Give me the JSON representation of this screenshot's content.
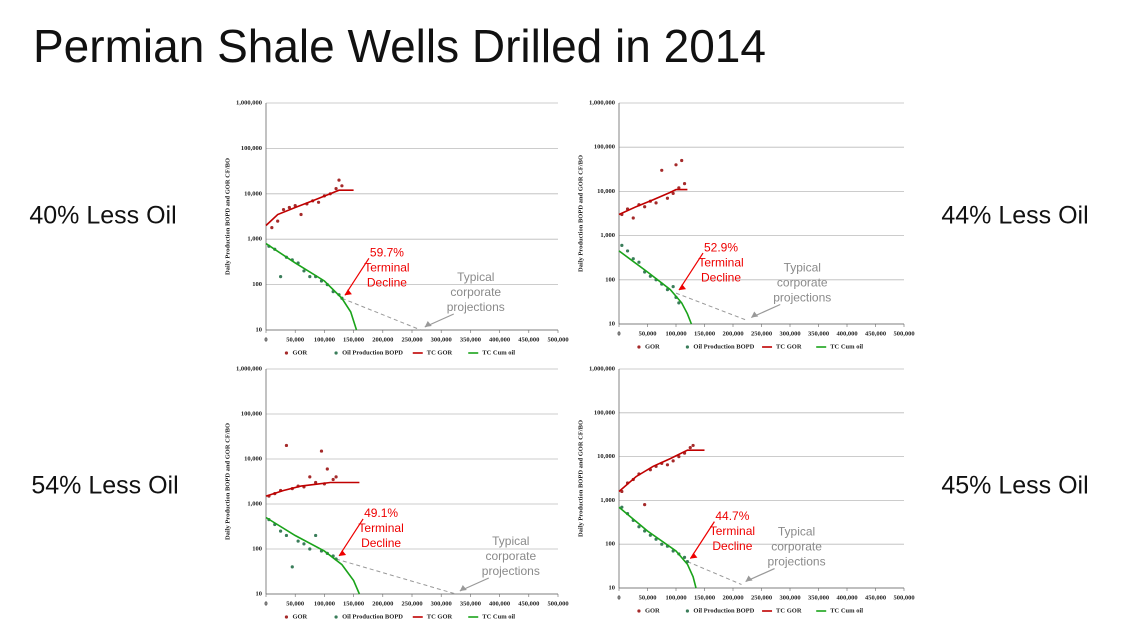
{
  "title": "Permian Shale Wells Drilled in 2014",
  "chart_data": [
    {
      "type": "scatter",
      "caption": "40% Less Oil",
      "y_label": "Daily Production BOPD and GOR CF/BO",
      "log_y": true,
      "grid": true,
      "xlim": [
        0,
        500000
      ],
      "ylim": [
        10,
        1000000
      ],
      "xticks": [
        0,
        {
          "value": 50000,
          "label": "50,000"
        },
        {
          "value": 100000,
          "label": "100,000"
        },
        {
          "value": 150000,
          "label": "150,000"
        },
        {
          "value": 200000,
          "label": "200,000"
        },
        {
          "value": 250000,
          "label": "250,000"
        },
        {
          "value": 300000,
          "label": "300,000"
        },
        {
          "value": 350000,
          "label": "350,000"
        },
        {
          "value": 400000,
          "label": "400,000"
        },
        {
          "value": 450000,
          "label": "450,000"
        },
        {
          "value": 500000,
          "label": "500,000"
        }
      ],
      "yticks": [
        10,
        100,
        {
          "value": 1000,
          "label": "1,000"
        },
        {
          "value": 10000,
          "label": "10,000"
        },
        {
          "value": 100000,
          "label": "100,000"
        },
        {
          "value": 1000000,
          "label": "1,000,000"
        }
      ],
      "series": [
        {
          "name": "GOR",
          "kind": "points",
          "color": "#a52a2a",
          "x": [
            10000,
            20000,
            30000,
            40000,
            50000,
            60000,
            70000,
            80000,
            90000,
            100000,
            110000,
            120000,
            125000,
            130000
          ],
          "values": [
            1800,
            2500,
            4500,
            5000,
            5500,
            3500,
            6000,
            7000,
            6500,
            9000,
            10000,
            13000,
            20000,
            15000
          ]
        },
        {
          "name": "Oil Production BOPD",
          "kind": "points",
          "color": "#3a7d5a",
          "x": [
            5000,
            15000,
            25000,
            35000,
            45000,
            55000,
            65000,
            75000,
            85000,
            95000,
            105000,
            115000,
            125000,
            130000
          ],
          "values": [
            700,
            600,
            150,
            400,
            350,
            300,
            200,
            150,
            150,
            120,
            100,
            70,
            60,
            50
          ]
        },
        {
          "name": "TC GOR",
          "kind": "line",
          "color": "#c00000",
          "x": [
            0,
            20000,
            50000,
            80000,
            110000,
            125000,
            150000
          ],
          "values": [
            2000,
            3500,
            5000,
            7000,
            10000,
            12000,
            12000
          ]
        },
        {
          "name": "TC Cum oil",
          "kind": "line",
          "color": "#1aa31a",
          "x": [
            0,
            50000,
            100000,
            130000,
            145000,
            155000
          ],
          "values": [
            800,
            300,
            120,
            50,
            25,
            10
          ]
        }
      ],
      "projection": {
        "x": [
          130000,
          265000
        ],
        "values": [
          50,
          10
        ]
      },
      "decline_note": [
        "59.7%",
        "Terminal",
        "Decline"
      ],
      "projection_note": [
        "Typical",
        "corporate",
        "projections"
      ]
    },
    {
      "type": "scatter",
      "caption": "44% Less Oil",
      "y_label": "Daily Production BOPD and GOR CF/BO",
      "log_y": true,
      "grid": true,
      "xlim": [
        0,
        500000
      ],
      "ylim": [
        10,
        1000000
      ],
      "xticks": [
        0,
        {
          "value": 50000,
          "label": "50,000"
        },
        {
          "value": 100000,
          "label": "100,000"
        },
        {
          "value": 150000,
          "label": "150,000"
        },
        {
          "value": 200000,
          "label": "200,000"
        },
        {
          "value": 250000,
          "label": "250,000"
        },
        {
          "value": 300000,
          "label": "300,000"
        },
        {
          "value": 350000,
          "label": "350,000"
        },
        {
          "value": 400000,
          "label": "400,000"
        },
        {
          "value": 450000,
          "label": "450,000"
        },
        {
          "value": 500000,
          "label": "500,000"
        }
      ],
      "yticks": [
        10,
        100,
        {
          "value": 1000,
          "label": "1,000"
        },
        {
          "value": 10000,
          "label": "10,000"
        },
        {
          "value": 100000,
          "label": "100,000"
        },
        {
          "value": 1000000,
          "label": "1,000,000"
        }
      ],
      "series": [
        {
          "name": "GOR",
          "kind": "points",
          "color": "#a52a2a",
          "x": [
            5000,
            15000,
            25000,
            35000,
            45000,
            55000,
            65000,
            75000,
            85000,
            95000,
            100000,
            105000,
            110000,
            115000
          ],
          "values": [
            3000,
            4000,
            2500,
            5000,
            4500,
            6000,
            5500,
            30000,
            7000,
            9000,
            40000,
            12000,
            50000,
            15000
          ]
        },
        {
          "name": "Oil Production BOPD",
          "kind": "points",
          "color": "#3a7d5a",
          "x": [
            5000,
            15000,
            25000,
            35000,
            45000,
            55000,
            65000,
            75000,
            85000,
            95000,
            100000,
            105000
          ],
          "values": [
            600,
            450,
            300,
            250,
            150,
            120,
            100,
            80,
            60,
            70,
            40,
            30
          ]
        },
        {
          "name": "TC GOR",
          "kind": "line",
          "color": "#c00000",
          "x": [
            0,
            30000,
            60000,
            90000,
            100000,
            120000
          ],
          "values": [
            3000,
            4500,
            6500,
            9500,
            11000,
            11000
          ]
        },
        {
          "name": "TC Cum oil",
          "kind": "line",
          "color": "#1aa31a",
          "x": [
            0,
            50000,
            90000,
            110000,
            120000,
            127000
          ],
          "values": [
            450,
            150,
            60,
            30,
            17,
            10
          ]
        }
      ],
      "projection": {
        "x": [
          100000,
          225000
        ],
        "values": [
          50,
          12
        ]
      },
      "decline_note": [
        "52.9%",
        "Terminal",
        "Decline"
      ],
      "projection_note": [
        "Typical",
        "corporate",
        "projections"
      ]
    },
    {
      "type": "scatter",
      "caption": "54% Less Oil",
      "y_label": "Daily Production BOPD and GOR CF/BO",
      "log_y": true,
      "grid": true,
      "xlim": [
        0,
        500000
      ],
      "ylim": [
        10,
        1000000
      ],
      "xticks": [
        0,
        {
          "value": 50000,
          "label": "50,000"
        },
        {
          "value": 100000,
          "label": "100,000"
        },
        {
          "value": 150000,
          "label": "150,000"
        },
        {
          "value": 200000,
          "label": "200,000"
        },
        {
          "value": 250000,
          "label": "250,000"
        },
        {
          "value": 300000,
          "label": "300,000"
        },
        {
          "value": 350000,
          "label": "350,000"
        },
        {
          "value": 400000,
          "label": "400,000"
        },
        {
          "value": 450000,
          "label": "450,000"
        },
        {
          "value": 500000,
          "label": "500,000"
        }
      ],
      "yticks": [
        10,
        100,
        {
          "value": 1000,
          "label": "1,000"
        },
        {
          "value": 10000,
          "label": "10,000"
        },
        {
          "value": 100000,
          "label": "100,000"
        },
        {
          "value": 1000000,
          "label": "1,000,000"
        }
      ],
      "series": [
        {
          "name": "GOR",
          "kind": "points",
          "color": "#a52a2a",
          "x": [
            5000,
            15000,
            25000,
            35000,
            45000,
            55000,
            65000,
            75000,
            85000,
            95000,
            100000,
            105000,
            115000,
            120000
          ],
          "values": [
            1500,
            1700,
            2000,
            20000,
            2200,
            2500,
            2400,
            4000,
            3000,
            15000,
            2800,
            6000,
            3500,
            4000
          ]
        },
        {
          "name": "Oil Production BOPD",
          "kind": "points",
          "color": "#3a7d5a",
          "x": [
            5000,
            15000,
            25000,
            35000,
            45000,
            55000,
            65000,
            75000,
            85000,
            95000,
            105000,
            115000,
            120000
          ],
          "values": [
            450,
            350,
            250,
            200,
            40,
            150,
            130,
            100,
            200,
            90,
            80,
            70,
            60
          ]
        },
        {
          "name": "TC GOR",
          "kind": "line",
          "color": "#c00000",
          "x": [
            0,
            30000,
            60000,
            90000,
            110000,
            160000
          ],
          "values": [
            1500,
            2000,
            2500,
            2800,
            3000,
            3000
          ]
        },
        {
          "name": "TC Cum oil",
          "kind": "line",
          "color": "#1aa31a",
          "x": [
            0,
            50000,
            100000,
            130000,
            150000,
            160000
          ],
          "values": [
            500,
            200,
            90,
            45,
            20,
            10
          ]
        }
      ],
      "projection": {
        "x": [
          120000,
          325000
        ],
        "values": [
          60,
          10
        ]
      },
      "decline_note": [
        "49.1%",
        "Terminal",
        "Decline"
      ],
      "projection_note": [
        "Typical",
        "corporate",
        "projections"
      ]
    },
    {
      "type": "scatter",
      "caption": "45% Less Oil",
      "y_label": "Daily Production BOPD and GOR CF/BO",
      "log_y": true,
      "grid": true,
      "xlim": [
        0,
        500000
      ],
      "ylim": [
        10,
        1000000
      ],
      "xticks": [
        0,
        {
          "value": 50000,
          "label": "50,000"
        },
        {
          "value": 100000,
          "label": "100,000"
        },
        {
          "value": 150000,
          "label": "150,000"
        },
        {
          "value": 200000,
          "label": "200,000"
        },
        {
          "value": 250000,
          "label": "250,000"
        },
        {
          "value": 300000,
          "label": "300,000"
        },
        {
          "value": 350000,
          "label": "350,000"
        },
        {
          "value": 400000,
          "label": "400,000"
        },
        {
          "value": 450000,
          "label": "450,000"
        },
        {
          "value": 500000,
          "label": "500,000"
        }
      ],
      "yticks": [
        10,
        100,
        {
          "value": 1000,
          "label": "1,000"
        },
        {
          "value": 10000,
          "label": "10,000"
        },
        {
          "value": 100000,
          "label": "100,000"
        },
        {
          "value": 1000000,
          "label": "1,000,000"
        }
      ],
      "series": [
        {
          "name": "GOR",
          "kind": "points",
          "color": "#a52a2a",
          "x": [
            5000,
            15000,
            25000,
            35000,
            45000,
            55000,
            65000,
            75000,
            85000,
            95000,
            105000,
            115000,
            125000,
            130000
          ],
          "values": [
            1600,
            2500,
            3000,
            4000,
            800,
            5000,
            6000,
            7000,
            6500,
            8000,
            10000,
            12000,
            16000,
            18000
          ]
        },
        {
          "name": "Oil Production BOPD",
          "kind": "points",
          "color": "#3a7d5a",
          "x": [
            5000,
            15000,
            25000,
            35000,
            45000,
            55000,
            65000,
            75000,
            85000,
            95000,
            105000,
            115000,
            120000
          ],
          "values": [
            700,
            500,
            350,
            250,
            200,
            160,
            130,
            100,
            90,
            70,
            60,
            50,
            40
          ]
        },
        {
          "name": "TC GOR",
          "kind": "line",
          "color": "#c00000",
          "x": [
            0,
            30000,
            60000,
            90000,
            120000,
            150000
          ],
          "values": [
            1600,
            3500,
            6000,
            9000,
            14000,
            14000
          ]
        },
        {
          "name": "TC Cum oil",
          "kind": "line",
          "color": "#1aa31a",
          "x": [
            0,
            50000,
            100000,
            120000,
            130000,
            135000
          ],
          "values": [
            700,
            200,
            70,
            35,
            18,
            10
          ]
        }
      ],
      "projection": {
        "x": [
          120000,
          215000
        ],
        "values": [
          40,
          12
        ]
      },
      "decline_note": [
        "44.7%",
        "Terminal",
        "Decline"
      ],
      "projection_note": [
        "Typical",
        "corporate",
        "projections"
      ]
    }
  ]
}
